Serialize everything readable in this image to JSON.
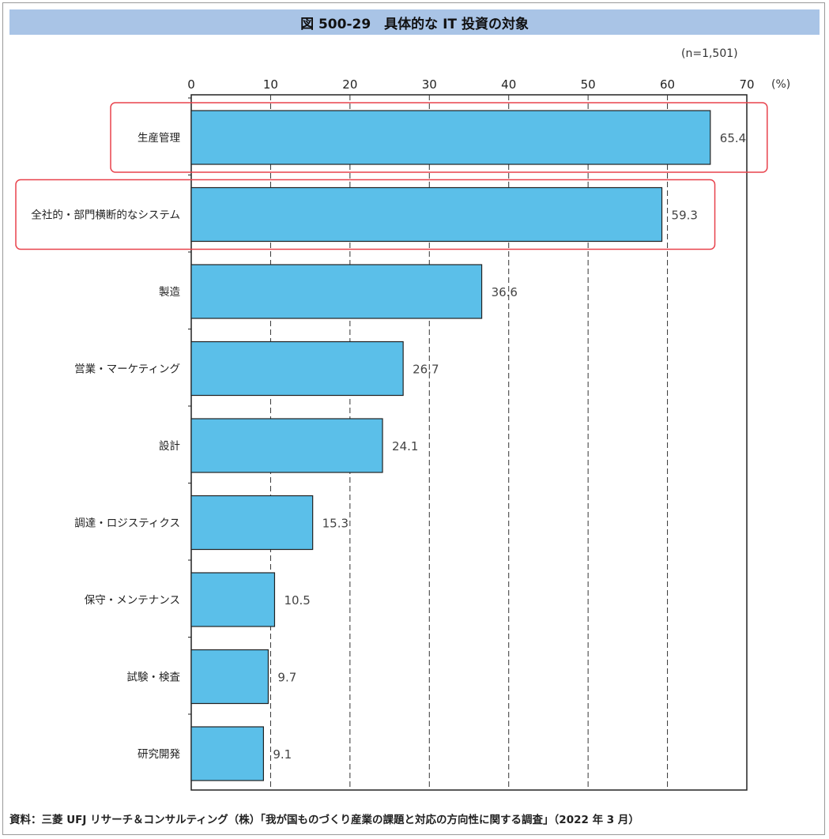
{
  "title": "図 500-29　具体的な IT 投資の対象",
  "sample_size": "(n=1,501)",
  "unit": "(%)",
  "source": "資料：三菱 UFJ リサーチ＆コンサルティング（株）「我が国ものづくり産業の課題と対応の方向性に関する調査」（2022 年 3 月）",
  "colors": {
    "bar_fill": "#5bbfe9",
    "bar_stroke": "#222222",
    "highlight": "#e8424c",
    "title_bg": "#a9c4e6"
  },
  "chart_data": {
    "type": "bar",
    "orientation": "horizontal",
    "categories": [
      "生産管理",
      "全社的・部門横断的なシステム",
      "製造",
      "営業・マーケティング",
      "設計",
      "調達・ロジスティクス",
      "保守・メンテナンス",
      "試験・検査",
      "研究開発"
    ],
    "values": [
      65.4,
      59.3,
      36.6,
      26.7,
      24.1,
      15.3,
      10.5,
      9.7,
      9.1
    ],
    "value_labels": [
      "65.4",
      "59.3",
      "36.6",
      "26.7",
      "24.1",
      "15.3",
      "10.5",
      "9.7",
      "9.1"
    ],
    "xlim": [
      0,
      70
    ],
    "ticks": [
      0,
      10,
      20,
      30,
      40,
      50,
      60,
      70
    ],
    "tick_labels": [
      "0",
      "10",
      "20",
      "30",
      "40",
      "50",
      "60",
      "70"
    ],
    "highlighted_categories": [
      "生産管理",
      "全社的・部門横断的なシステム"
    ],
    "grid": "vertical dashed",
    "legend": "none"
  }
}
